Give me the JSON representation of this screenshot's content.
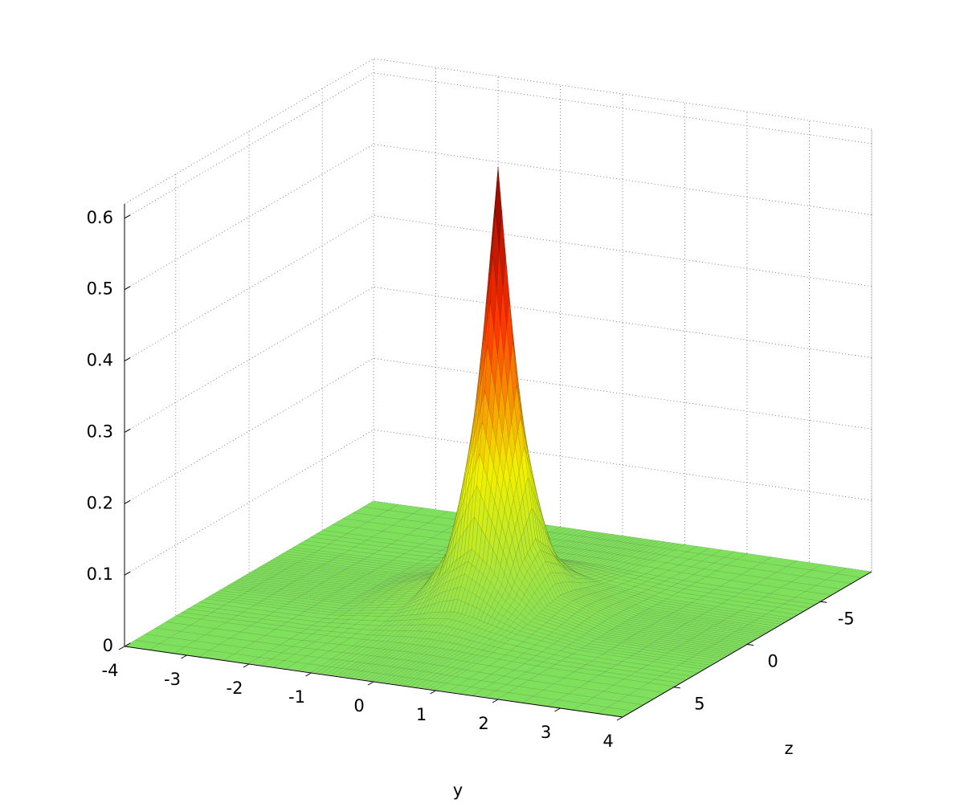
{
  "chart_data": {
    "type": "surface",
    "xlabel": "y",
    "ylabel": "z",
    "xlim": [
      -4,
      4
    ],
    "xticks": [
      -4,
      -3,
      -2,
      -1,
      0,
      1,
      2,
      3,
      4
    ],
    "ylim": [
      -8.5,
      8.5
    ],
    "yticks": [
      -5,
      0,
      5
    ],
    "zlim": [
      0,
      0.62
    ],
    "zticks": [
      0,
      0.1,
      0.2,
      0.3,
      0.4,
      0.5,
      0.6
    ],
    "grid": true,
    "colormap": [
      "#7ee05c",
      "#f2f000",
      "#ff3000",
      "#7a0000"
    ],
    "x": [
      -4,
      -2,
      -1,
      -0.6,
      -0.3,
      0,
      0.3,
      0.6,
      1,
      2,
      4
    ],
    "y": [
      -8.5,
      -5,
      -3,
      -1.8,
      -0.9,
      0,
      0.9,
      1.8,
      3,
      5,
      8.5
    ],
    "values": [
      [
        0,
        0.001,
        0.001,
        0.001,
        0.001,
        0.001,
        0.001,
        0.001,
        0.001,
        0.001,
        0
      ],
      [
        0.001,
        0.002,
        0.005,
        0.007,
        0.008,
        0.008,
        0.008,
        0.007,
        0.005,
        0.002,
        0.001
      ],
      [
        0.001,
        0.003,
        0.013,
        0.021,
        0.028,
        0.032,
        0.028,
        0.021,
        0.013,
        0.003,
        0.001
      ],
      [
        0.001,
        0.004,
        0.021,
        0.048,
        0.083,
        0.106,
        0.083,
        0.048,
        0.021,
        0.004,
        0.001
      ],
      [
        0.001,
        0.005,
        0.028,
        0.083,
        0.2,
        0.317,
        0.2,
        0.083,
        0.028,
        0.005,
        0.001
      ],
      [
        0.001,
        0.005,
        0.032,
        0.106,
        0.317,
        0.62,
        0.317,
        0.106,
        0.032,
        0.005,
        0.001
      ],
      [
        0.001,
        0.005,
        0.028,
        0.083,
        0.2,
        0.317,
        0.2,
        0.083,
        0.028,
        0.005,
        0.001
      ],
      [
        0.001,
        0.004,
        0.021,
        0.048,
        0.083,
        0.106,
        0.083,
        0.048,
        0.021,
        0.004,
        0.001
      ],
      [
        0.001,
        0.003,
        0.013,
        0.021,
        0.028,
        0.032,
        0.028,
        0.021,
        0.013,
        0.003,
        0.001
      ],
      [
        0.001,
        0.002,
        0.005,
        0.007,
        0.008,
        0.008,
        0.008,
        0.007,
        0.005,
        0.002,
        0.001
      ],
      [
        0,
        0.001,
        0.001,
        0.001,
        0.001,
        0.001,
        0.001,
        0.001,
        0.001,
        0.001,
        0
      ]
    ]
  }
}
